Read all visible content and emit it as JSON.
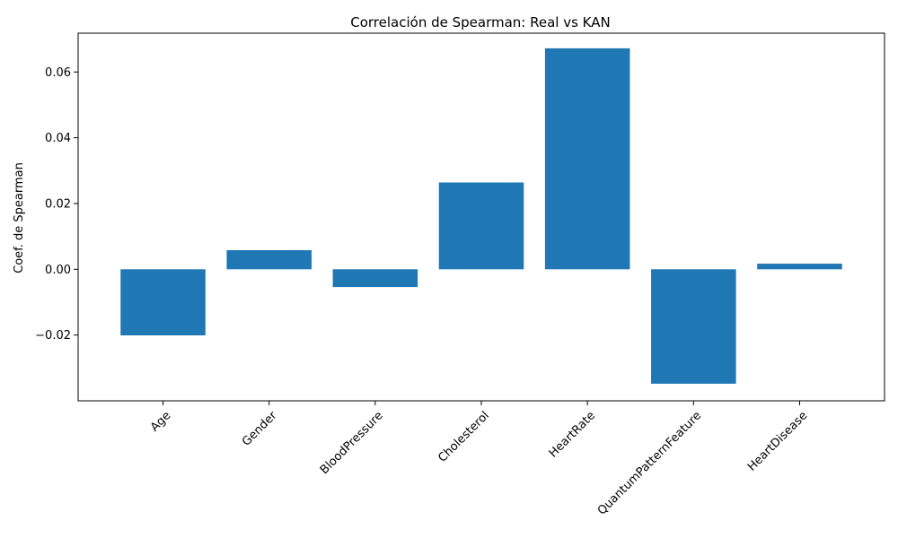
{
  "chart_data": {
    "type": "bar",
    "title": "Correlación de Spearman: Real vs KAN",
    "xlabel": "",
    "ylabel": "Coef. de Spearman",
    "categories": [
      "Age",
      "Gender",
      "BloodPressure",
      "Cholesterol",
      "HeartRate",
      "QuantumPatternFeature",
      "HeartDisease"
    ],
    "values": [
      -0.0201,
      0.0058,
      -0.0054,
      0.0264,
      0.0672,
      -0.0348,
      0.0017
    ],
    "ylim": [
      -0.04,
      0.0718
    ],
    "yticks": [
      -0.02,
      0.0,
      0.02,
      0.04,
      0.06
    ],
    "ytick_labels": [
      "−0.02",
      "0.00",
      "0.02",
      "0.04",
      "0.06"
    ],
    "bar_color": "#1f77b4",
    "grid": false,
    "legend": "none"
  }
}
